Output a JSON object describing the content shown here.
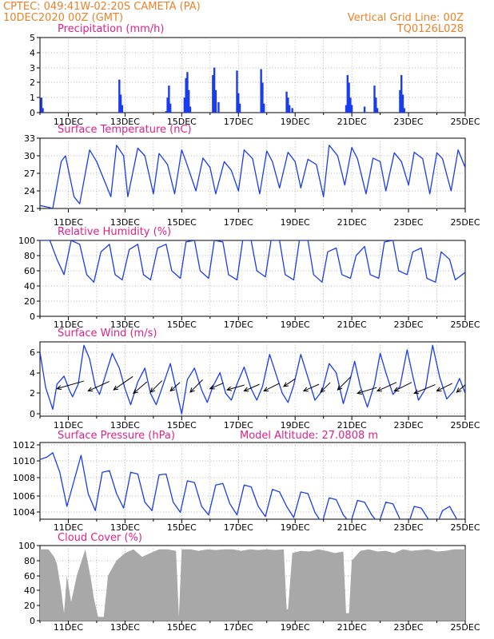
{
  "header": {
    "line1": "CPTEC:   049:41W-02:20S   CAMETA (PA)",
    "line2": "10DEC2020 00Z (GMT)",
    "right1": "Vertical Grid Line: 00Z",
    "right2": "TQ0126L028"
  },
  "x_axis": {
    "start": "10DEC2020 00Z",
    "end": "25DEC2020 00Z",
    "labels": [
      "11DEC",
      "13DEC",
      "15DEC",
      "17DEC",
      "19DEC",
      "21DEC",
      "23DEC",
      "25DEC"
    ]
  },
  "colors": {
    "header": "#e8822a",
    "title": "#e0208a",
    "line": "#1a3cf0",
    "bar": "#1a3cf0",
    "cloud": "#a8a8a8",
    "arrow": "#000000",
    "grid": "#9a9a9a"
  },
  "chart_data": [
    {
      "id": "precip",
      "type": "bar",
      "title": "Precipitation (mm/h)",
      "ylim": [
        0,
        5
      ],
      "yticks": [
        "0",
        "1",
        "2",
        "3",
        "4",
        "5"
      ],
      "x": [
        0.05,
        0.1,
        2.8,
        2.85,
        2.9,
        4.45,
        4.5,
        4.55,
        4.6,
        5.1,
        5.15,
        5.2,
        5.25,
        5.3,
        6.1,
        6.15,
        6.2,
        6.3,
        6.95,
        7.0,
        7.05,
        7.8,
        7.85,
        7.9,
        8.7,
        8.75,
        8.8,
        8.9,
        10.8,
        10.85,
        10.9,
        10.95,
        11.0,
        11.45,
        11.8,
        11.85,
        11.9,
        12.7,
        12.75,
        12.8,
        12.85
      ],
      "y": [
        1.0,
        0.3,
        2.2,
        1.2,
        0.5,
        0.1,
        1.0,
        1.8,
        0.6,
        1.0,
        2.3,
        2.7,
        1.5,
        0.4,
        2.5,
        3.0,
        1.5,
        0.7,
        2.8,
        1.3,
        0.6,
        2.9,
        2.0,
        0.6,
        1.4,
        1.0,
        0.5,
        0.3,
        0.5,
        2.5,
        2.0,
        1.0,
        0.5,
        0.4,
        1.8,
        1.0,
        0.3,
        1.5,
        2.5,
        1.2,
        0.3
      ]
    },
    {
      "id": "temp",
      "type": "line",
      "title": "Surface Temperature (nC)",
      "ylim": [
        21,
        33
      ],
      "yticks": [
        "21",
        "24",
        "27",
        "30",
        "33"
      ],
      "x": [
        0,
        0.3,
        0.45,
        0.75,
        0.9,
        1.2,
        1.4,
        1.75,
        2.0,
        2.5,
        2.7,
        2.95,
        3.1,
        3.45,
        3.7,
        4.0,
        4.2,
        4.5,
        4.75,
        5.0,
        5.15,
        5.5,
        5.75,
        6.0,
        6.2,
        6.5,
        6.75,
        7.0,
        7.2,
        7.5,
        7.75,
        8.0,
        8.2,
        8.45,
        8.75,
        9.0,
        9.2,
        9.45,
        9.75,
        10.0,
        10.2,
        10.5,
        10.75,
        11.0,
        11.2,
        11.5,
        11.75,
        12.0,
        12.2,
        12.5,
        12.75,
        13.0,
        13.2,
        13.5,
        13.75,
        14.0,
        14.2,
        14.5,
        14.75,
        15.0
      ],
      "y": [
        21.5,
        21.2,
        21.0,
        29.0,
        30.0,
        23.0,
        21.8,
        31.0,
        29.0,
        23.0,
        31.8,
        30.0,
        23.0,
        31.3,
        30.0,
        23.5,
        30.4,
        28.5,
        23.5,
        31.0,
        29.0,
        24.0,
        29.6,
        28.0,
        23.5,
        29.0,
        27.5,
        24.0,
        31.0,
        29.5,
        23.5,
        30.8,
        29.0,
        24.5,
        30.6,
        29.0,
        24.5,
        29.4,
        28.5,
        23.0,
        31.8,
        30.0,
        25.0,
        31.4,
        29.5,
        23.5,
        29.6,
        29.0,
        24.0,
        30.5,
        29.0,
        25.0,
        30.6,
        29.5,
        23.5,
        30.5,
        29.5,
        24.0,
        31.0,
        28.0
      ]
    },
    {
      "id": "rh",
      "type": "line",
      "title": "Relative Humidity (%)",
      "ylim": [
        0,
        100
      ],
      "yticks": [
        "0",
        "20",
        "40",
        "60",
        "80",
        "100"
      ],
      "x": [
        0,
        0.35,
        0.6,
        0.85,
        1.1,
        1.4,
        1.65,
        1.9,
        2.15,
        2.45,
        2.65,
        2.9,
        3.15,
        3.45,
        3.65,
        3.9,
        4.15,
        4.45,
        4.65,
        4.95,
        5.15,
        5.45,
        5.65,
        5.95,
        6.15,
        6.45,
        6.65,
        6.95,
        7.15,
        7.45,
        7.65,
        7.95,
        8.15,
        8.45,
        8.65,
        8.95,
        9.15,
        9.45,
        9.65,
        9.95,
        10.15,
        10.45,
        10.65,
        10.95,
        11.15,
        11.45,
        11.65,
        11.95,
        12.15,
        12.45,
        12.65,
        12.95,
        13.15,
        13.45,
        13.65,
        13.95,
        14.15,
        14.45,
        14.65,
        15.0
      ],
      "y": [
        100,
        100,
        75,
        55,
        100,
        95,
        55,
        45,
        85,
        95,
        55,
        48,
        88,
        95,
        55,
        48,
        90,
        95,
        60,
        50,
        98,
        100,
        60,
        50,
        100,
        98,
        55,
        48,
        100,
        100,
        60,
        52,
        100,
        100,
        55,
        48,
        100,
        100,
        55,
        45,
        85,
        90,
        55,
        50,
        80,
        92,
        55,
        50,
        98,
        100,
        60,
        55,
        85,
        90,
        50,
        45,
        85,
        75,
        48,
        58
      ]
    },
    {
      "id": "wind",
      "type": "line",
      "title": "Surface Wind (m/s)",
      "ylim": [
        0,
        6.5
      ],
      "yticks": [
        "0",
        "2",
        "4",
        "6"
      ],
      "x": [
        0,
        0.2,
        0.45,
        0.6,
        0.85,
        1.05,
        1.15,
        1.35,
        1.55,
        1.75,
        1.95,
        2.1,
        2.3,
        2.55,
        2.8,
        3.0,
        3.2,
        3.45,
        3.7,
        3.9,
        4.1,
        4.35,
        4.6,
        4.8,
        5.0,
        5.2,
        5.45,
        5.7,
        5.9,
        6.1,
        6.35,
        6.55,
        6.75,
        6.95,
        7.2,
        7.45,
        7.65,
        7.85,
        8.1,
        8.35,
        8.55,
        8.75,
        8.95,
        9.2,
        9.45,
        9.7,
        9.95,
        10.2,
        10.45,
        10.7,
        10.9,
        11.1,
        11.3,
        11.55,
        11.8,
        12.0,
        12.2,
        12.45,
        12.7,
        12.95,
        13.15,
        13.35,
        13.6,
        13.85,
        14.1,
        14.35,
        14.6,
        14.8,
        15.0
      ],
      "y": [
        5.6,
        2.5,
        0.6,
        2.8,
        3.5,
        2.2,
        1.7,
        2.8,
        6.2,
        5.0,
        2.6,
        1.9,
        3.5,
        5.5,
        4.2,
        2.4,
        1.0,
        3.0,
        4.2,
        2.0,
        1.0,
        2.8,
        4.6,
        2.4,
        0.2,
        3.2,
        4.2,
        2.3,
        1.2,
        2.6,
        3.8,
        2.0,
        1.4,
        2.8,
        4.3,
        2.4,
        1.4,
        2.6,
        5.4,
        3.5,
        2.0,
        1.2,
        2.7,
        5.4,
        3.4,
        1.4,
        2.2,
        4.6,
        3.8,
        1.1,
        2.8,
        4.8,
        2.6,
        0.8,
        2.8,
        5.5,
        3.8,
        1.9,
        2.6,
        5.8,
        3.5,
        1.4,
        2.4,
        6.2,
        3.4,
        1.5,
        2.2,
        3.3,
        2.0
      ]
    },
    {
      "id": "wind_arrows",
      "type": "scatter",
      "x": [
        0.6,
        1.7,
        2.6,
        3.3,
        3.9,
        4.6,
        5.3,
        6.0,
        6.6,
        7.2,
        7.9,
        8.6,
        9.3,
        9.9,
        10.5,
        11.2,
        11.9,
        12.5,
        13.2,
        14.0,
        14.7
      ],
      "y": [
        2.4,
        2.2,
        2.3,
        2.0,
        2.1,
        2.2,
        2.1,
        2.4,
        2.3,
        2.2,
        2.2,
        2.6,
        2.2,
        2.1,
        2.3,
        2.0,
        2.2,
        2.2,
        2.0,
        2.2,
        2.1
      ],
      "u": [
        2.8,
        2.2,
        2.0,
        1.4,
        1.2,
        1.0,
        1.3,
        1.4,
        1.8,
        1.6,
        1.6,
        1.2,
        1.6,
        1.0,
        1.4,
        2.0,
        2.0,
        1.8,
        2.2,
        1.6,
        1.4
      ],
      "v": [
        0.8,
        1.0,
        1.4,
        1.2,
        1.2,
        0.9,
        1.3,
        0.6,
        0.5,
        0.7,
        0.8,
        0.8,
        0.7,
        1.0,
        1.4,
        0.6,
        0.9,
        0.9,
        0.9,
        0.8,
        1.2
      ]
    },
    {
      "id": "pressure",
      "type": "line",
      "title": "Surface Pressure (hPa)",
      "annotation": "Model Altitude: 27.0808 m",
      "ylim": [
        1003,
        1012
      ],
      "yticks": [
        "1004",
        "1006",
        "1008",
        "1010",
        "1012"
      ],
      "x": [
        0,
        0.25,
        0.45,
        0.7,
        0.95,
        1.2,
        1.45,
        1.7,
        1.95,
        2.2,
        2.45,
        2.7,
        2.95,
        3.2,
        3.45,
        3.7,
        3.95,
        4.2,
        4.45,
        4.7,
        4.95,
        5.2,
        5.45,
        5.7,
        5.95,
        6.2,
        6.45,
        6.7,
        6.95,
        7.2,
        7.45,
        7.7,
        7.95,
        8.2,
        8.45,
        8.7,
        8.95,
        9.2,
        9.45,
        9.7,
        9.95,
        10.2,
        10.45,
        10.7,
        10.95,
        11.2,
        11.45,
        11.7,
        11.95,
        12.2,
        12.45,
        12.7,
        12.95,
        13.2,
        13.45,
        13.7,
        13.95,
        14.2,
        14.45,
        14.7,
        15.0
      ],
      "y": [
        1010.0,
        1010.3,
        1010.8,
        1008.5,
        1004.5,
        1007.5,
        1010.5,
        1006.0,
        1004.0,
        1008.5,
        1008.7,
        1006.0,
        1004.3,
        1008.5,
        1008.3,
        1005.0,
        1004.0,
        1008.2,
        1008.3,
        1005.0,
        1003.8,
        1007.5,
        1007.3,
        1004.5,
        1003.5,
        1007.0,
        1007.2,
        1004.8,
        1003.5,
        1007.0,
        1006.8,
        1004.5,
        1003.3,
        1006.5,
        1006.2,
        1004.5,
        1003.2,
        1006.2,
        1006.0,
        1003.8,
        1002.5,
        1005.5,
        1005.3,
        1003.5,
        1002.5,
        1005.2,
        1005.0,
        1003.5,
        1002.5,
        1005.0,
        1004.8,
        1003.0,
        1002.0,
        1004.5,
        1004.3,
        1003.0,
        1002.0,
        1004.0,
        1004.5,
        1003.0,
        1002.5
      ]
    },
    {
      "id": "cloud",
      "type": "area",
      "title": "Cloud Cover (%)",
      "ylim": [
        0,
        100
      ],
      "yticks": [
        "0",
        "20",
        "40",
        "60",
        "80",
        "100"
      ],
      "x": [
        0,
        0.3,
        0.5,
        0.6,
        0.75,
        0.85,
        0.95,
        1.1,
        1.3,
        1.6,
        1.8,
        1.9,
        2.05,
        2.1,
        2.25,
        2.4,
        2.7,
        3.0,
        3.3,
        3.6,
        3.9,
        4.2,
        4.5,
        4.8,
        4.9,
        5.0,
        5.3,
        5.6,
        5.9,
        6.2,
        6.5,
        6.8,
        7.1,
        7.4,
        7.7,
        8.0,
        8.3,
        8.6,
        8.7,
        8.75,
        8.9,
        9.2,
        9.5,
        9.8,
        10.1,
        10.4,
        10.7,
        10.8,
        10.9,
        11.0,
        11.3,
        11.6,
        11.9,
        12.2,
        12.5,
        12.8,
        13.1,
        13.4,
        13.7,
        14.0,
        14.3,
        14.6,
        15.0
      ],
      "y": [
        95,
        95,
        85,
        75,
        40,
        10,
        60,
        25,
        60,
        95,
        55,
        30,
        5,
        5,
        5,
        60,
        80,
        90,
        95,
        85,
        90,
        95,
        95,
        93,
        5,
        95,
        95,
        93,
        95,
        94,
        95,
        95,
        93,
        95,
        94,
        95,
        94,
        95,
        15,
        15,
        90,
        93,
        92,
        95,
        93,
        90,
        92,
        10,
        10,
        80,
        93,
        95,
        92,
        93,
        90,
        95,
        93,
        94,
        95,
        92,
        93,
        95,
        95
      ]
    }
  ]
}
